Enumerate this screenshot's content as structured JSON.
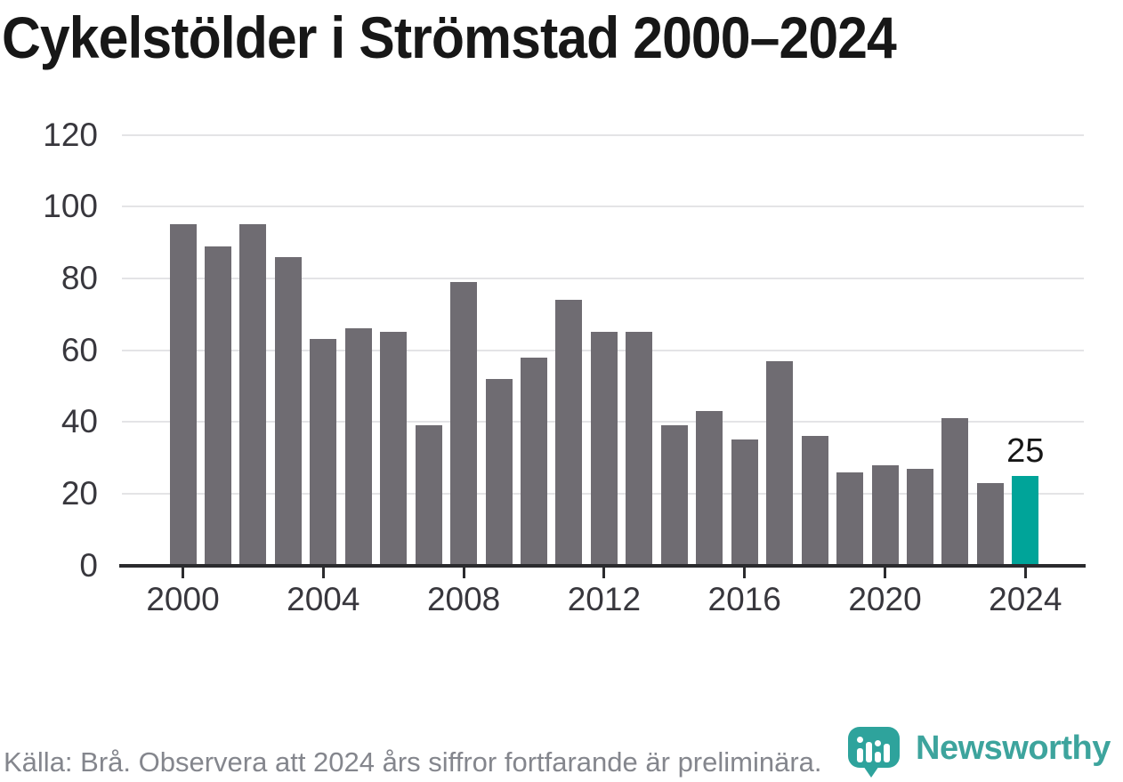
{
  "title": "Cykelstölder i Strömstad 2000–2024",
  "footer": {
    "source_note": "Källa: Brå. Observera att 2024 års siffror fortfarande är preliminära."
  },
  "branding": {
    "name": "Newsworthy",
    "logo_color": "#2ea39c",
    "text_color": "#3da49d"
  },
  "chart_data": {
    "type": "bar",
    "title": "Cykelstölder i Strömstad 2000–2024",
    "categories": [
      2000,
      2001,
      2002,
      2003,
      2004,
      2005,
      2006,
      2007,
      2008,
      2009,
      2010,
      2011,
      2012,
      2013,
      2014,
      2015,
      2016,
      2017,
      2018,
      2019,
      2020,
      2021,
      2022,
      2023,
      2024
    ],
    "values": [
      95,
      89,
      95,
      86,
      63,
      66,
      65,
      39,
      79,
      52,
      58,
      74,
      65,
      65,
      39,
      43,
      35,
      57,
      36,
      26,
      28,
      27,
      41,
      23,
      25
    ],
    "highlight_category": 2024,
    "highlight_value_label": "25",
    "xlabel": "",
    "ylabel": "",
    "ylim": [
      0,
      120
    ],
    "y_ticks": [
      0,
      20,
      40,
      60,
      80,
      100,
      120
    ],
    "x_tick_labels": [
      "2000",
      "2004",
      "2008",
      "2012",
      "2016",
      "2020",
      "2024"
    ],
    "grid": true,
    "legend": "none",
    "colors": {
      "bar": "#6f6c72",
      "highlight_bar": "#00a499",
      "gridline": "#e4e4e6",
      "axis": "#2b2b2e",
      "tick_text": "#38373d"
    }
  }
}
